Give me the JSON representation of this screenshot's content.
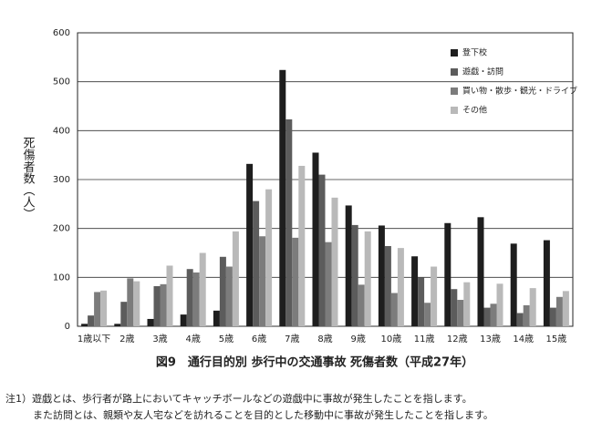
{
  "chart_data": {
    "type": "bar",
    "title": "図9　通行目的別 歩行中の交通事故 死傷者数（平成27年）",
    "y_label": "死傷者数（人）",
    "categories": [
      "1歳以下",
      "2歳",
      "3歳",
      "4歳",
      "5歳",
      "6歳",
      "7歳",
      "8歳",
      "9歳",
      "10歳",
      "11歳",
      "12歳",
      "13歳",
      "14歳",
      "15歳"
    ],
    "series": [
      {
        "name": "登下校",
        "color": "#1e1e1e",
        "values": [
          5,
          5,
          15,
          24,
          32,
          332,
          524,
          355,
          247,
          206,
          143,
          211,
          223,
          169,
          176
        ]
      },
      {
        "name": "遊戯・訪問",
        "color": "#5c5c5c",
        "values": [
          22,
          50,
          82,
          117,
          142,
          256,
          423,
          310,
          207,
          164,
          100,
          76,
          38,
          27,
          38
        ]
      },
      {
        "name": "買い物・散歩・観光・ドライブ",
        "color": "#7c7c7c",
        "values": [
          70,
          98,
          86,
          110,
          122,
          184,
          181,
          172,
          85,
          68,
          48,
          54,
          46,
          43,
          60
        ]
      },
      {
        "name": "その他",
        "color": "#b9b9b9",
        "values": [
          73,
          92,
          124,
          150,
          194,
          280,
          328,
          263,
          194,
          160,
          122,
          90,
          87,
          78,
          72
        ]
      }
    ],
    "ylim": [
      0,
      600
    ],
    "yticks": [
      0,
      100,
      200,
      300,
      400,
      500,
      600
    ],
    "grid": true,
    "legend": "top-right",
    "notes": [
      "注1）遊戯とは、歩行者が路上においてキャッチボールなどの遊戯中に事故が発生したことを指します。",
      "また訪問とは、親類や友人宅などを訪れることを目的とした移動中に事故が発生したことを指します。"
    ]
  }
}
